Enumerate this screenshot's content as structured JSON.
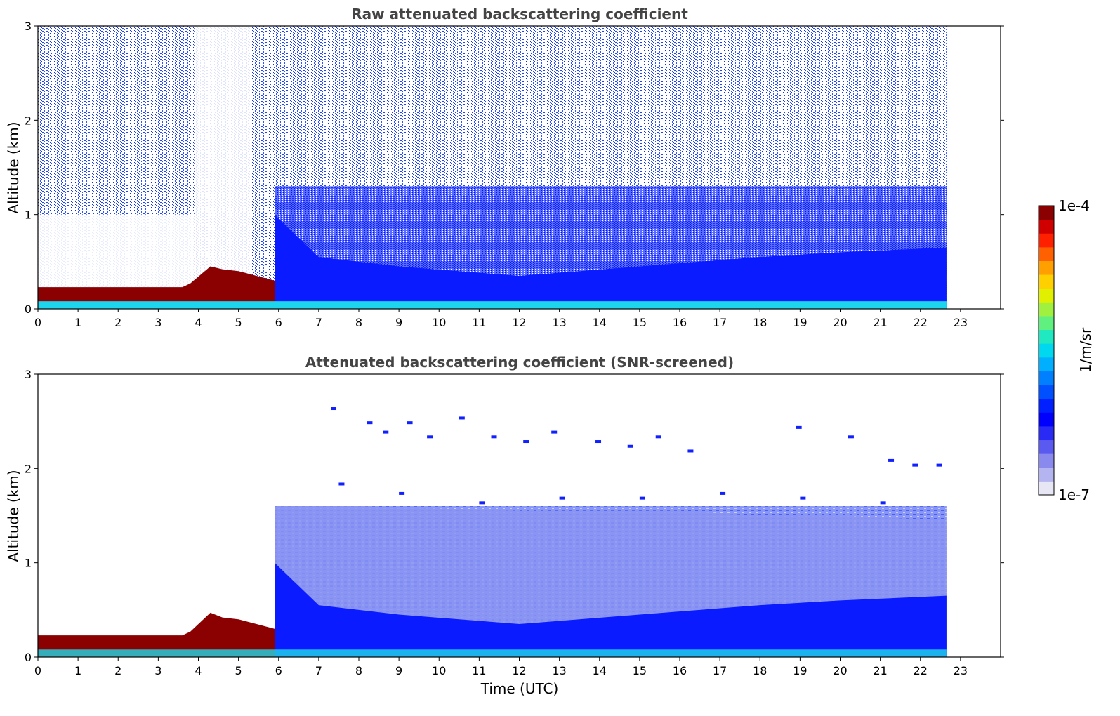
{
  "chart_data": [
    {
      "type": "heatmap",
      "title": "Raw attenuated backscattering coefficient",
      "xlabel": "",
      "ylabel": "Altitude (km)",
      "xlim": [
        0,
        24
      ],
      "ylim": [
        0,
        3
      ],
      "xticks": [
        "0",
        "1",
        "2",
        "3",
        "4",
        "5",
        "6",
        "7",
        "8",
        "9",
        "10",
        "11",
        "12",
        "13",
        "14",
        "15",
        "16",
        "17",
        "18",
        "19",
        "20",
        "21",
        "22",
        "23"
      ],
      "yticks": [
        "0",
        "1",
        "2",
        "3"
      ],
      "data_end_time": 22.65,
      "colorscale": "log",
      "layers": [
        {
          "name": "nocturnal boundary layer (strong)",
          "x": [
            0,
            3.6,
            3.8,
            4.3,
            4.6,
            5.0,
            5.9
          ],
          "y_top": [
            0.23,
            0.23,
            0.27,
            0.45,
            0.42,
            0.4,
            0.3
          ],
          "level": "1e-4"
        },
        {
          "name": "aerosol layer",
          "x": [
            5.9,
            7,
            9,
            12,
            15,
            18,
            20,
            22.65
          ],
          "y_top": [
            1.0,
            0.55,
            0.45,
            0.35,
            0.45,
            0.55,
            0.6,
            0.65
          ],
          "level": "3e-6"
        },
        {
          "name": "near-surface layer",
          "x": [
            0,
            22.65
          ],
          "y_top": [
            0.08,
            0.08
          ],
          "level": "1e-5"
        }
      ]
    },
    {
      "type": "heatmap",
      "title": "Attenuated backscattering coefficient (SNR-screened)",
      "xlabel": "Time (UTC)",
      "ylabel": "Altitude (km)",
      "xlim": [
        0,
        24
      ],
      "ylim": [
        0,
        3
      ],
      "xticks": [
        "0",
        "1",
        "2",
        "3",
        "4",
        "5",
        "6",
        "7",
        "8",
        "9",
        "10",
        "11",
        "12",
        "13",
        "14",
        "15",
        "16",
        "17",
        "18",
        "19",
        "20",
        "21",
        "22",
        "23"
      ],
      "yticks": [
        "0",
        "1",
        "2",
        "3"
      ],
      "data_end_time": 22.65,
      "colorscale": "log",
      "layers": [
        {
          "name": "nocturnal boundary layer (strong)",
          "x": [
            0,
            3.6,
            3.8,
            4.3,
            4.6,
            5.0,
            5.9
          ],
          "y_top": [
            0.23,
            0.23,
            0.27,
            0.47,
            0.42,
            0.4,
            0.3
          ],
          "level": "1e-4"
        },
        {
          "name": "residual layer",
          "x": [
            5.9,
            8,
            12,
            16,
            18,
            20,
            22.65
          ],
          "y_top": [
            1.6,
            1.6,
            1.55,
            1.55,
            1.5,
            1.5,
            1.45
          ],
          "level": "3e-7"
        },
        {
          "name": "aerosol layer",
          "x": [
            5.9,
            7,
            9,
            12,
            15,
            18,
            20,
            22.65
          ],
          "y_top": [
            1.0,
            0.55,
            0.45,
            0.35,
            0.45,
            0.55,
            0.6,
            0.65
          ],
          "level": "3e-6"
        }
      ]
    }
  ],
  "colorbar": {
    "max_label": "1e-4",
    "min_label": "1e-7",
    "unit_label": "1/m/sr",
    "colors": [
      "#e6e6f5",
      "#b4b4f0",
      "#8a8aee",
      "#5a5af0",
      "#2a2af5",
      "#0000ff",
      "#0020ff",
      "#0050ff",
      "#0080ff",
      "#00b0ff",
      "#00d8f0",
      "#20e8c0",
      "#60f080",
      "#a0f040",
      "#e0f000",
      "#ffd000",
      "#ffa000",
      "#ff6000",
      "#ff2000",
      "#d00000",
      "#8b0000"
    ]
  }
}
